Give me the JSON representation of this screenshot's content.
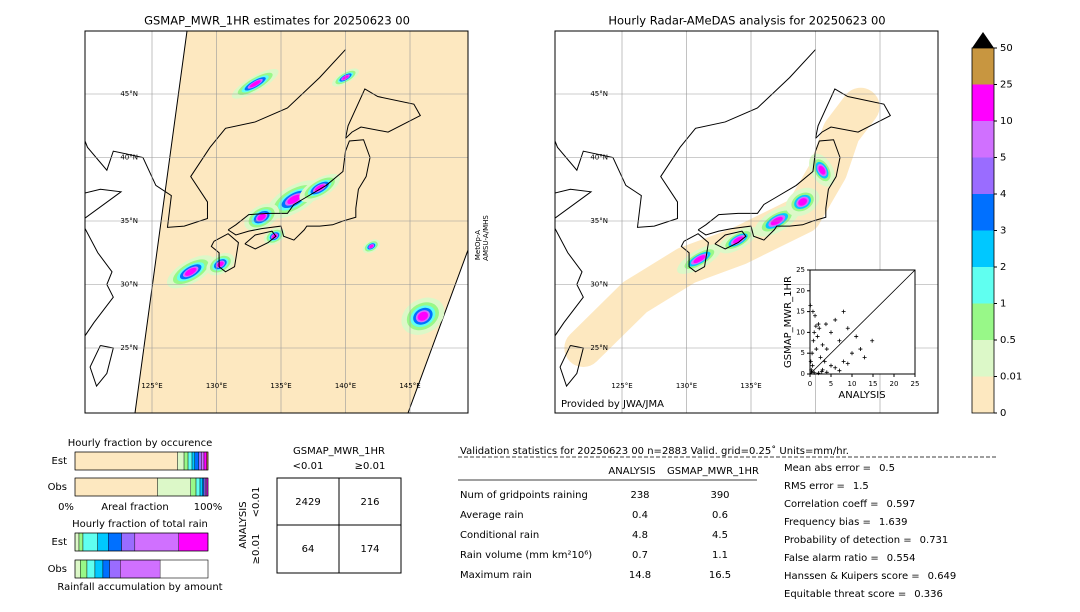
{
  "left_map": {
    "title": "GSMAP_MWR_1HR estimates for 20250623 00",
    "lat_labels": [
      "45°N",
      "40°N",
      "35°N",
      "30°N",
      "25°N"
    ],
    "lon_labels": [
      "125°E",
      "130°E",
      "135°E",
      "140°E",
      "145°E"
    ],
    "satellite": [
      "MetOp-A",
      "AMSU-A/MHS"
    ]
  },
  "right_map": {
    "title": "Hourly Radar-AMeDAS analysis for 20250623 00",
    "lat_labels": [
      "45°N",
      "40°N",
      "35°N",
      "30°N",
      "25°N"
    ],
    "lon_labels": [
      "125°E",
      "130°E",
      "135°E"
    ],
    "credit": "Provided by JWA/JMA"
  },
  "scatter": {
    "x_label": "ANALYSIS",
    "y_label": "GSMAP_MWR_1HR",
    "xlim": [
      0,
      25
    ],
    "ylim": [
      0,
      25
    ],
    "xticks": [
      0,
      5,
      10,
      15,
      20,
      25
    ],
    "yticks": [
      0,
      5,
      10,
      15,
      20,
      25
    ],
    "x": [
      0.2,
      0.5,
      0.8,
      1,
      1.5,
      2,
      2.5,
      3,
      0.3,
      0.6,
      1.2,
      1.8,
      2.2,
      3.5,
      4,
      5,
      6,
      7,
      8,
      9,
      10,
      11,
      12,
      13,
      14.8,
      0.4,
      1,
      2,
      3,
      4,
      5,
      6,
      7,
      8,
      9,
      0.1,
      0.7,
      1.4,
      2.8,
      3.8
    ],
    "y": [
      3,
      5,
      8,
      10,
      6,
      12,
      4,
      7,
      1,
      2,
      14,
      9,
      11,
      3,
      6,
      10,
      13,
      8,
      15,
      11,
      5,
      9,
      6,
      4,
      8,
      0.5,
      0.3,
      0.2,
      1,
      0.4,
      2,
      1.5,
      0.8,
      3,
      2.5,
      16.5,
      15,
      11.5,
      0.6,
      12
    ],
    "marker_color": "#000000"
  },
  "colorbar": {
    "bounds": [
      0,
      0.01,
      0.5,
      1,
      2,
      3,
      4,
      5,
      10,
      25,
      50
    ],
    "colors": [
      "#fde8c0",
      "#dcf8c8",
      "#98f888",
      "#60fff0",
      "#00c8ff",
      "#0070ff",
      "#9a6cff",
      "#d070ff",
      "#ff00ff",
      "#c89640"
    ]
  },
  "occurrence": {
    "title": "Hourly fraction by occurence",
    "rows": [
      "Est",
      "Obs"
    ],
    "axis_labels": [
      "0%",
      "Areal fraction",
      "100%"
    ],
    "values": [
      [
        77,
        5,
        3,
        3,
        2,
        3,
        2,
        2,
        2,
        1
      ],
      [
        62,
        25,
        4,
        3,
        2,
        1,
        1,
        1,
        1,
        0
      ]
    ]
  },
  "total_rain": {
    "title": "Hourly fraction of total rain",
    "rows": [
      "Est",
      "Obs"
    ],
    "footer": "Rainfall accumulation by amount",
    "values": [
      [
        0,
        3,
        3,
        11,
        8,
        10,
        10,
        33,
        22,
        0
      ],
      [
        0,
        4,
        5,
        6,
        6,
        5,
        8,
        30,
        0,
        0
      ]
    ]
  },
  "contingency": {
    "title": "GSMAP_MWR_1HR",
    "columns": [
      "<0.01",
      "≥0.01"
    ],
    "row_axis": "ANALYSIS",
    "rows": [
      "<0.01",
      "≥0.01"
    ],
    "cells": [
      [
        2429,
        216
      ],
      [
        64,
        174
      ]
    ]
  },
  "validation": {
    "header": "Validation statistics for 20250623 00  n=2883 Valid. grid=0.25˚ Units=mm/hr.",
    "columns": [
      "ANALYSIS",
      "GSMAP_MWR_1HR"
    ],
    "rows": [
      [
        "Num of gridpoints raining",
        238,
        390
      ],
      [
        "Average rain",
        0.4,
        0.6
      ],
      [
        "Conditional rain",
        4.8,
        4.5
      ],
      [
        "Rain volume (mm km²10⁶)",
        0.7,
        1.1
      ],
      [
        "Maximum rain",
        14.8,
        16.5
      ]
    ]
  },
  "scores": [
    [
      "Mean abs error =",
      0.5
    ],
    [
      "RMS error =",
      1.5
    ],
    [
      "Correlation coeff =",
      0.597
    ],
    [
      "Frequency bias =",
      1.639
    ],
    [
      "Probability of detection =",
      0.731
    ],
    [
      "False alarm ratio =",
      0.554
    ],
    [
      "Hanssen & Kuipers score =",
      0.649
    ],
    [
      "Equitable threat score =",
      0.336
    ]
  ]
}
